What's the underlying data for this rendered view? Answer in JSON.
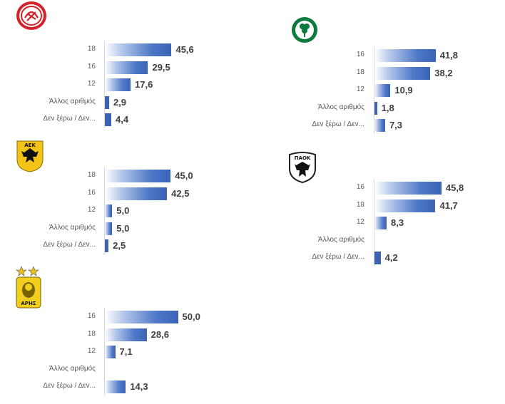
{
  "chart_data": [
    {
      "type": "bar",
      "team_logo": "olympiacos-logo",
      "categories": [
        "18",
        "16",
        "12",
        "Άλλος αριθμός",
        "Δεν ξέρω / Δεν..."
      ],
      "values": [
        45.6,
        29.5,
        17.6,
        2.9,
        4.4
      ],
      "value_labels": [
        "45,6",
        "29,5",
        "17,6",
        "2,9",
        "4,4"
      ]
    },
    {
      "type": "bar",
      "team_logo": "panathinaikos-logo",
      "categories": [
        "16",
        "18",
        "12",
        "Άλλος αριθμός",
        "Δεν ξέρω / Δεν..."
      ],
      "values": [
        41.8,
        38.2,
        10.9,
        1.8,
        7.3
      ],
      "value_labels": [
        "41,8",
        "38,2",
        "10,9",
        "1,8",
        "7,3"
      ]
    },
    {
      "type": "bar",
      "team_logo": "aek-logo",
      "categories": [
        "18",
        "16",
        "12",
        "Άλλος αριθμός",
        "Δεν ξέρω / Δεν..."
      ],
      "values": [
        45.0,
        42.5,
        5.0,
        5.0,
        2.5
      ],
      "value_labels": [
        "45,0",
        "42,5",
        "5,0",
        "5,0",
        "2,5"
      ]
    },
    {
      "type": "bar",
      "team_logo": "paok-logo",
      "categories": [
        "16",
        "18",
        "12",
        "Άλλος αριθμός",
        "Δεν ξέρω / Δεν..."
      ],
      "values": [
        45.8,
        41.7,
        8.3,
        null,
        4.2
      ],
      "value_labels": [
        "45,8",
        "41,7",
        "8,3",
        "",
        "4,2"
      ]
    },
    {
      "type": "bar",
      "team_logo": "aris-logo",
      "categories": [
        "16",
        "18",
        "12",
        "Άλλος αριθμός",
        "Δεν ξέρω / Δεν..."
      ],
      "values": [
        50.0,
        28.6,
        7.1,
        null,
        14.3
      ],
      "value_labels": [
        "50,0",
        "28,6",
        "7,1",
        "",
        "14,3"
      ]
    }
  ],
  "logos": {
    "olympiacos": {
      "text": "",
      "color": "#d6202a"
    },
    "panathinaikos": {
      "text": "ΠΑΝΑΘΗΝΑΪΚΟΣ 1908",
      "color": "#0b7a3b"
    },
    "aek": {
      "text": "ΑΕΚ",
      "color": "#f2c318"
    },
    "paok": {
      "text": "ΠΑΟΚ",
      "color": "#222222"
    },
    "aris": {
      "text": "ΑΡΗΣ",
      "color": "#f2cf1f"
    }
  }
}
